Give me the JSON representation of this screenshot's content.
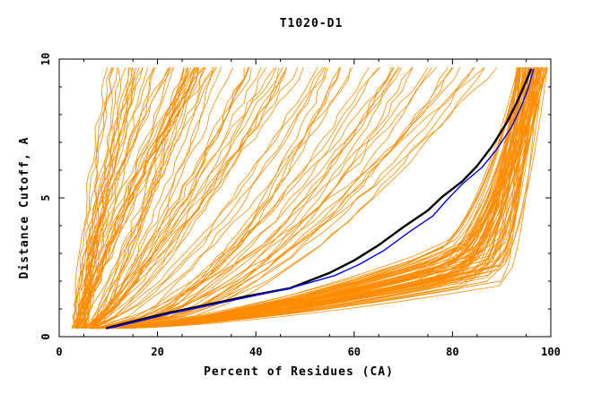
{
  "chart_data": {
    "type": "line",
    "title": "T1020-D1",
    "xlabel": "Percent of Residues (CA)",
    "ylabel": "Distance Cutoff, A",
    "xlim": [
      0,
      100
    ],
    "ylim": [
      0,
      10
    ],
    "x_ticks": [
      "0",
      "20",
      "40",
      "60",
      "80",
      "100"
    ],
    "y_ticks": [
      "0",
      "5",
      "10"
    ],
    "grid": false,
    "legend": "none",
    "colors": {
      "models": "#ff8c00",
      "highlight_black": "#000000",
      "highlight_blue": "#0000ff"
    },
    "series_groups": {
      "models_fast": {
        "count": 40,
        "x_start_range": [
          3,
          6
        ],
        "x_end_range": [
          10,
          32
        ],
        "curvature_range": [
          0.6,
          1.1
        ]
      },
      "models_mid": {
        "count": 30,
        "x_start_range": [
          4,
          8
        ],
        "x_end_range": [
          25,
          55
        ],
        "curvature_range": [
          1.0,
          1.6
        ]
      },
      "models_slow": {
        "count": 30,
        "x_start_range": [
          6,
          12
        ],
        "x_end_range": [
          50,
          92
        ],
        "curvature_range": [
          1.4,
          2.2
        ]
      },
      "models_best": {
        "count": 80,
        "knee_x_range": [
          70,
          90
        ],
        "knee_y_range": [
          1.7,
          3.0
        ],
        "x_end_range": [
          93,
          99.5
        ]
      }
    },
    "highlight_series": [
      {
        "color": "#000000",
        "x": [
          9.5,
          15,
          22,
          30,
          38,
          47,
          55,
          60,
          65,
          70,
          75,
          78,
          82,
          85,
          88,
          91,
          93,
          95,
          96
        ],
        "y": [
          0.3,
          0.55,
          0.85,
          1.15,
          1.45,
          1.75,
          2.3,
          2.75,
          3.3,
          3.95,
          4.55,
          5.05,
          5.6,
          6.15,
          6.85,
          7.7,
          8.4,
          9.2,
          9.65
        ]
      },
      {
        "color": "#0000ff",
        "x": [
          10,
          16,
          23,
          31,
          39,
          47,
          56,
          61,
          66,
          71,
          76,
          79,
          82,
          86,
          89,
          92,
          94,
          95.5,
          96.5
        ],
        "y": [
          0.3,
          0.55,
          0.85,
          1.15,
          1.45,
          1.75,
          2.2,
          2.6,
          3.1,
          3.75,
          4.35,
          4.95,
          5.5,
          6.1,
          6.75,
          7.55,
          8.3,
          9.0,
          9.65
        ]
      }
    ]
  }
}
